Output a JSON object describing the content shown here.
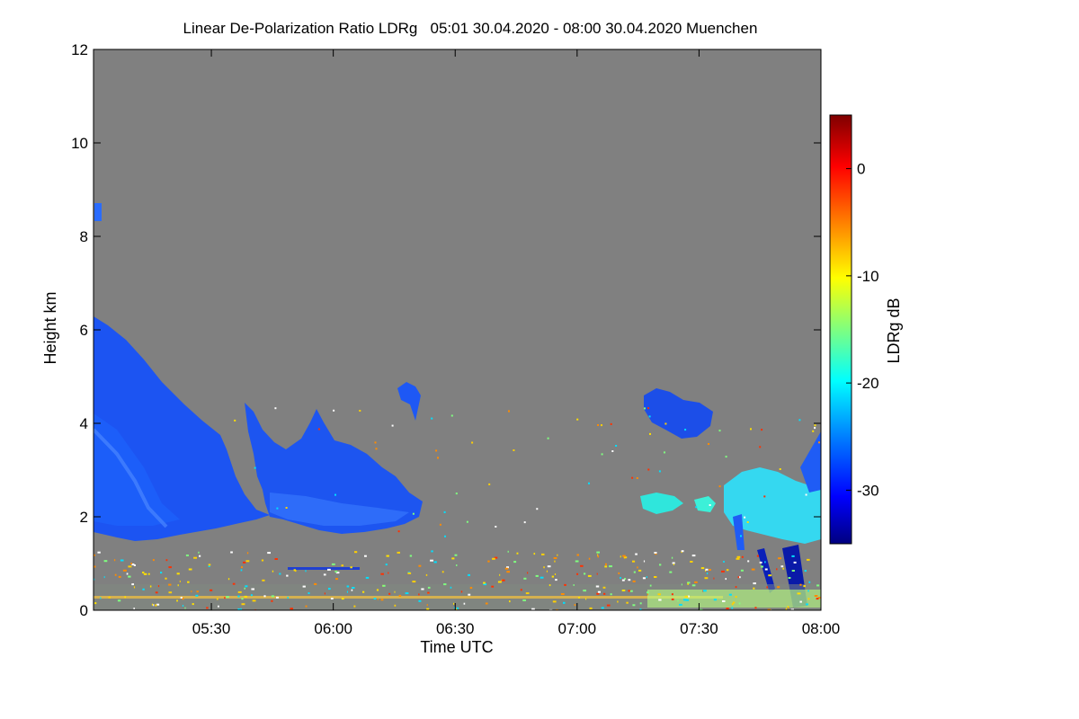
{
  "chart_data": {
    "type": "heatmap",
    "title": "Linear De-Polarization Ratio LDRg   05:01 30.04.2020 - 08:00 30.04.2020 Muenchen",
    "xlabel": "Time UTC",
    "ylabel": "Height km",
    "x_range_minutes_utc": [
      301,
      480
    ],
    "y_range_km": [
      0,
      12
    ],
    "x_ticks": [
      {
        "minutes": 330,
        "label": "05:30"
      },
      {
        "minutes": 360,
        "label": "06:00"
      },
      {
        "minutes": 390,
        "label": "06:30"
      },
      {
        "minutes": 420,
        "label": "07:00"
      },
      {
        "minutes": 450,
        "label": "07:30"
      },
      {
        "minutes": 480,
        "label": "08:00"
      }
    ],
    "y_ticks": [
      0,
      2,
      4,
      6,
      8,
      10,
      12
    ],
    "colorbar": {
      "label": "LDRg dB",
      "range": [
        -35,
        5
      ],
      "ticks": [
        0,
        -10,
        -20,
        -30
      ],
      "colors": [
        "#00007f",
        "#0000ff",
        "#007fff",
        "#00ffff",
        "#7fff7f",
        "#ffff00",
        "#ff7f00",
        "#ff0000",
        "#7f0000"
      ]
    },
    "no_data_color": "#808080",
    "features": [
      {
        "name": "large depolarizing layer",
        "time_range": [
          "05:01",
          "05:40"
        ],
        "height_km": [
          1.6,
          6.2
        ],
        "ldr_db": -30
      },
      {
        "name": "cloud band",
        "time_range": [
          "05:39",
          "06:22"
        ],
        "height_km": [
          1.7,
          4.5
        ],
        "ldr_db": -29
      },
      {
        "name": "small cloud",
        "time_range": [
          "06:16",
          "06:21"
        ],
        "height_km": [
          4.3,
          4.8
        ],
        "ldr_db": -29
      },
      {
        "name": "cloud patch",
        "time_range": [
          "07:17",
          "07:30"
        ],
        "height_km": [
          3.6,
          4.6
        ],
        "ldr_db": -30
      },
      {
        "name": "low layer",
        "time_range": [
          "07:17",
          "07:28"
        ],
        "height_km": [
          1.9,
          2.4
        ],
        "ldr_db": -20
      },
      {
        "name": "precipitation streaks",
        "time_range": [
          "07:40",
          "08:00"
        ],
        "height_km": [
          0,
          3
        ],
        "ldr_db": -31
      },
      {
        "name": "upper fragment",
        "time_range": [
          "05:01",
          "05:02"
        ],
        "height_km": [
          8.3,
          8.7
        ],
        "ldr_db": -28
      }
    ]
  }
}
